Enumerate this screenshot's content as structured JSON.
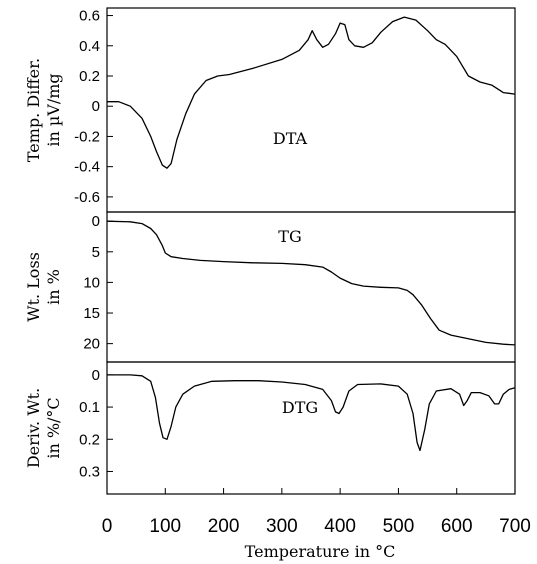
{
  "chart_data": [
    {
      "type": "line",
      "ylabel_lines": [
        "Temp. Differ.",
        "in µV/mg"
      ],
      "annotation": "DTA",
      "ylim": [
        -0.7,
        0.65
      ],
      "yticks": [
        0.6,
        0.4,
        0.2,
        0,
        -0.2,
        -0.4,
        -0.6
      ],
      "ytick_labels": [
        "0.6",
        "0.4",
        "0.2",
        "0",
        "-0.2",
        "-0.4",
        "-0.6"
      ],
      "series": [
        {
          "x": [
            0,
            20,
            40,
            60,
            75,
            85,
            95,
            103,
            110,
            120,
            135,
            150,
            170,
            190,
            210,
            250,
            300,
            330,
            345,
            352,
            360,
            370,
            380,
            392,
            400,
            408,
            415,
            425,
            440,
            455,
            470,
            490,
            510,
            530,
            550,
            565,
            580,
            600,
            620,
            640,
            660,
            680,
            700
          ],
          "y": [
            0.03,
            0.03,
            0.0,
            -0.08,
            -0.2,
            -0.3,
            -0.39,
            -0.41,
            -0.38,
            -0.22,
            -0.05,
            0.08,
            0.17,
            0.2,
            0.21,
            0.25,
            0.31,
            0.37,
            0.44,
            0.5,
            0.44,
            0.39,
            0.41,
            0.48,
            0.55,
            0.54,
            0.44,
            0.4,
            0.39,
            0.42,
            0.49,
            0.56,
            0.59,
            0.57,
            0.5,
            0.44,
            0.41,
            0.33,
            0.2,
            0.16,
            0.14,
            0.09,
            0.08
          ]
        }
      ]
    },
    {
      "type": "line",
      "ylabel_lines": [
        "Wt. Loss",
        "in %"
      ],
      "annotation": "TG",
      "ylim": [
        -1.5,
        23
      ],
      "y_inverted": true,
      "yticks": [
        0,
        5,
        10,
        15,
        20
      ],
      "ytick_labels": [
        "0",
        "5",
        "10",
        "15",
        "20"
      ],
      "series": [
        {
          "x": [
            0,
            40,
            60,
            75,
            85,
            95,
            100,
            110,
            130,
            160,
            200,
            250,
            300,
            340,
            370,
            385,
            400,
            420,
            440,
            470,
            500,
            515,
            525,
            540,
            555,
            570,
            590,
            620,
            650,
            680,
            700
          ],
          "y": [
            0,
            0.1,
            0.4,
            1.2,
            2.2,
            4.0,
            5.2,
            5.8,
            6.1,
            6.4,
            6.6,
            6.8,
            6.9,
            7.1,
            7.5,
            8.3,
            9.3,
            10.2,
            10.6,
            10.8,
            10.9,
            11.3,
            12.0,
            13.7,
            15.9,
            17.8,
            18.6,
            19.2,
            19.8,
            20.1,
            20.2
          ]
        }
      ]
    },
    {
      "type": "line",
      "ylabel_lines": [
        "Deriv. Wt.",
        "in %/°C"
      ],
      "annotation": "DTG",
      "ylim": [
        -0.04,
        0.37
      ],
      "y_inverted": true,
      "yticks": [
        0,
        0.1,
        0.2,
        0.3
      ],
      "ytick_labels": [
        "0",
        "0.1",
        "0.2",
        "0.3"
      ],
      "series": [
        {
          "x": [
            0,
            40,
            60,
            75,
            83,
            90,
            96,
            103,
            110,
            118,
            130,
            150,
            180,
            220,
            260,
            300,
            340,
            370,
            385,
            392,
            398,
            405,
            415,
            430,
            470,
            500,
            515,
            525,
            532,
            537,
            545,
            553,
            565,
            590,
            605,
            612,
            618,
            625,
            640,
            655,
            665,
            672,
            680,
            690,
            700
          ],
          "y": [
            0.0,
            0.0,
            0.003,
            0.02,
            0.07,
            0.15,
            0.195,
            0.2,
            0.16,
            0.1,
            0.06,
            0.035,
            0.02,
            0.018,
            0.018,
            0.022,
            0.03,
            0.045,
            0.08,
            0.115,
            0.12,
            0.1,
            0.05,
            0.03,
            0.028,
            0.035,
            0.06,
            0.12,
            0.21,
            0.235,
            0.17,
            0.09,
            0.05,
            0.043,
            0.06,
            0.095,
            0.08,
            0.055,
            0.055,
            0.065,
            0.09,
            0.09,
            0.06,
            0.045,
            0.04
          ]
        }
      ]
    }
  ],
  "x_axis": {
    "label": "Temperature in °C",
    "xlim": [
      0,
      700
    ],
    "ticks": [
      0,
      100,
      200,
      300,
      400,
      500,
      600,
      700
    ],
    "tick_labels": [
      "0",
      "100",
      "200",
      "300",
      "400",
      "500",
      "600",
      "700"
    ]
  }
}
